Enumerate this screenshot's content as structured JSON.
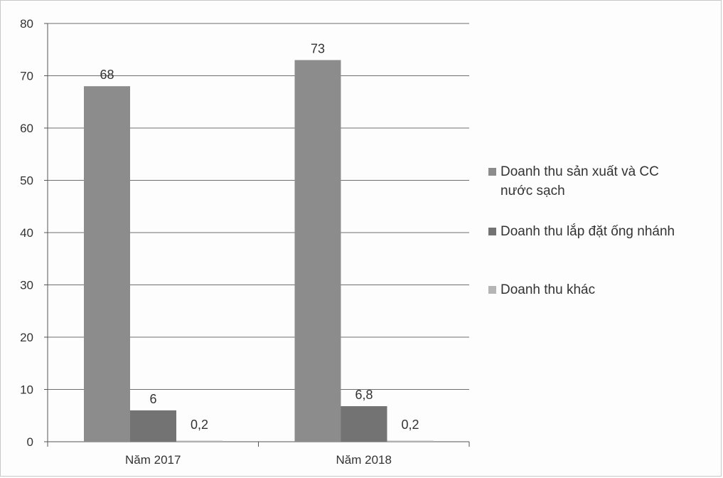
{
  "chart_data": {
    "type": "bar",
    "categories": [
      "Năm 2017",
      "Năm 2018"
    ],
    "series": [
      {
        "name": "Doanh thu sản xuất và CC nước sạch",
        "values": [
          68,
          73
        ],
        "labels": [
          "68",
          "73"
        ],
        "color": "#8c8c8c"
      },
      {
        "name": "Doanh thu lắp đặt ống nhánh",
        "values": [
          6,
          6.8
        ],
        "labels": [
          "6",
          "6,8"
        ],
        "color": "#737373"
      },
      {
        "name": "Doanh thu khác",
        "values": [
          0.2,
          0.2
        ],
        "labels": [
          "0,2",
          "0,2"
        ],
        "color": "#b5b5b5"
      }
    ],
    "legend_lines": [
      [
        "Doanh thu sản xuất và CC",
        "nước sạch"
      ],
      [
        "Doanh thu lắp đặt ống nhánh"
      ],
      [
        "Doanh thu khác"
      ]
    ],
    "yticks": [
      "0",
      "10",
      "20",
      "30",
      "40",
      "50",
      "60",
      "70",
      "80"
    ],
    "ylim": [
      0,
      80
    ],
    "grid": true,
    "legend_position": "right"
  }
}
